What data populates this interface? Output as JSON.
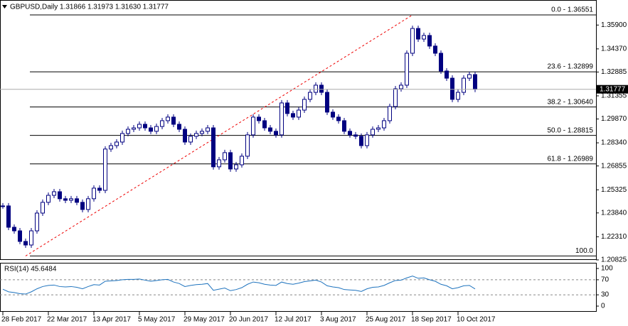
{
  "chart_data": {
    "type": "candlestick",
    "header": "GBPUSD,Daily  1.31866 1.31973 1.31630 1.31777",
    "ylim": [
      1.2073,
      1.3728
    ],
    "yticks": [
      {
        "value": 1.359,
        "label": "1.35900"
      },
      {
        "value": 1.3437,
        "label": "1.34370"
      },
      1.32885,
      1.31355,
      {
        "value": 1.2987,
        "label": "1.29870"
      },
      {
        "value": 1.2834,
        "label": "1.28340"
      },
      1.26855,
      1.25325,
      {
        "value": 1.2384,
        "label": "1.23840"
      },
      {
        "value": 1.2231,
        "label": "1.22310"
      },
      1.20825
    ],
    "last_price": 1.31777,
    "categories": [
      "28 Feb 2017",
      null,
      null,
      null,
      null,
      null,
      null,
      null,
      "22 Mar 2017",
      null,
      null,
      null,
      null,
      null,
      null,
      null,
      "13 Apr 2017",
      null,
      null,
      null,
      null,
      null,
      null,
      null,
      "5 May 2017",
      null,
      null,
      null,
      null,
      null,
      null,
      null,
      "29 May 2017",
      null,
      null,
      null,
      null,
      null,
      null,
      null,
      "20 Jun 2017",
      null,
      null,
      null,
      null,
      null,
      null,
      null,
      "12 Jul 2017",
      null,
      null,
      null,
      null,
      null,
      null,
      null,
      "3 Aug 2017",
      null,
      null,
      null,
      null,
      null,
      null,
      null,
      "25 Aug 2017",
      null,
      null,
      null,
      null,
      null,
      null,
      null,
      "18 Sep 2017",
      null,
      null,
      null,
      null,
      null,
      null,
      null,
      "10 Oct 2017",
      null,
      null,
      null
    ],
    "close": [
      1.2429,
      1.2292,
      1.2269,
      1.2201,
      1.2178,
      1.2269,
      1.2383,
      1.2452,
      1.2497,
      1.252,
      1.2475,
      1.2465,
      1.2475,
      1.2452,
      1.2406,
      1.2475,
      1.2543,
      1.2529,
      1.2794,
      1.2816,
      1.2839,
      1.2894,
      1.2921,
      1.293,
      1.2953,
      1.293,
      1.2908,
      1.2939,
      1.2976,
      1.2999,
      1.2953,
      1.2921,
      1.2839,
      1.2876,
      1.2894,
      1.2908,
      1.293,
      1.268,
      1.2725,
      1.2771,
      1.2666,
      1.2693,
      1.2748,
      1.2885,
      1.2999,
      1.2976,
      1.293,
      1.2908,
      1.2885,
      1.309,
      1.3022,
      1.2999,
      1.3044,
      1.3113,
      1.3158,
      1.3204,
      1.3158,
      1.3031,
      1.2999,
      1.2976,
      1.2908,
      1.2885,
      1.2876,
      1.2816,
      1.2885,
      1.2921,
      1.293,
      1.2976,
      1.3067,
      1.3181,
      1.3204,
      1.3409,
      1.3568,
      1.35,
      1.3523,
      1.3455,
      1.3409,
      1.3295,
      1.3249,
      1.3113,
      1.3158,
      1.3249,
      1.3272,
      1.31777
    ],
    "fibonacci": [
      {
        "label": "0.0 - 1.36551",
        "price": 1.36551
      },
      {
        "label": "23.6 - 1.32899",
        "price": 1.32899
      },
      {
        "label": "38.2 - 1.30640",
        "price": 1.3064
      },
      {
        "label": "50.0 - 1.28815",
        "price": 1.28815
      },
      {
        "label": "61.8 - 1.26989",
        "price": 1.26989
      },
      {
        "label": "100.0",
        "price": 1.21076
      }
    ],
    "rsi": {
      "header": "RSI(14) 45.6484",
      "ylim": [
        0,
        100
      ],
      "yticks": [
        100,
        70,
        30,
        0
      ],
      "color": "#1e73be",
      "values": [
        45,
        38,
        36,
        33,
        32,
        38,
        46,
        52,
        55,
        56,
        52,
        51,
        52,
        50,
        46,
        52,
        57,
        56,
        66,
        67,
        68,
        70,
        71,
        71,
        72,
        69,
        66,
        68,
        70,
        71,
        64,
        60,
        52,
        55,
        57,
        58,
        60,
        42,
        45,
        48,
        41,
        44,
        49,
        58,
        64,
        62,
        58,
        56,
        55,
        64,
        60,
        58,
        61,
        65,
        67,
        69,
        64,
        54,
        51,
        49,
        44,
        43,
        42,
        39,
        46,
        50,
        51,
        55,
        62,
        68,
        69,
        75,
        80,
        74,
        75,
        70,
        66,
        58,
        54,
        46,
        49,
        54,
        55,
        45.6484
      ]
    }
  }
}
